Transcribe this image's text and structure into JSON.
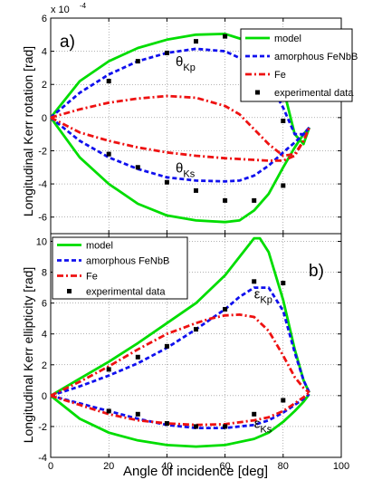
{
  "chart_data": [
    {
      "type": "line",
      "panel_label": "a)",
      "ylabel": "Longitudinal Kerr rotation [rad]",
      "xlabel": "",
      "exponent_label": "x 10",
      "exponent_power": "-4",
      "xlim": [
        0,
        100
      ],
      "ylim": [
        -7,
        6
      ],
      "xticks": [
        0,
        20,
        40,
        60,
        80,
        100
      ],
      "yticks": [
        -6,
        -4,
        -2,
        0,
        2,
        4,
        6
      ],
      "grid": true,
      "legend_position": "top-right",
      "legend": [
        "model",
        "amorphous FeNbB",
        "Fe",
        "experimental data"
      ],
      "annotations": [
        {
          "sym": "θ",
          "sub": "Kp",
          "x": 43,
          "y": 3.1
        },
        {
          "sym": "θ",
          "sub": "Ks",
          "x": 43,
          "y": -3.3
        }
      ],
      "series": [
        {
          "name": "model",
          "color": "#00dd00",
          "style": "solid",
          "x": [
            0,
            10,
            20,
            30,
            40,
            50,
            60,
            70,
            75,
            80,
            84,
            87,
            89
          ],
          "values": [
            0,
            2.2,
            3.4,
            4.2,
            4.7,
            5.0,
            5.05,
            4.5,
            3.6,
            1.8,
            -1.0,
            -1.6,
            -0.6
          ]
        },
        {
          "name": "model",
          "color": "#00dd00",
          "style": "solid",
          "x": [
            0,
            10,
            20,
            30,
            40,
            50,
            60,
            65,
            70,
            75,
            80,
            84,
            87,
            89
          ],
          "values": [
            0,
            -2.4,
            -4.0,
            -5.2,
            -5.9,
            -6.2,
            -6.3,
            -6.2,
            -5.6,
            -4.6,
            -3.0,
            -1.8,
            -1.0,
            -0.6
          ]
        },
        {
          "name": "amorphous FeNbB",
          "color": "#1010ee",
          "style": "dash",
          "x": [
            0,
            10,
            20,
            30,
            40,
            50,
            60,
            70,
            75,
            80,
            84,
            87,
            89
          ],
          "values": [
            0,
            1.5,
            2.6,
            3.4,
            3.9,
            4.15,
            4.0,
            3.2,
            2.2,
            0.6,
            -1.0,
            -1.0,
            -0.6
          ]
        },
        {
          "name": "amorphous FeNbB",
          "color": "#1010ee",
          "style": "dash",
          "x": [
            0,
            10,
            20,
            30,
            40,
            50,
            60,
            65,
            70,
            75,
            80,
            84,
            87,
            89
          ],
          "values": [
            0,
            -1.4,
            -2.4,
            -3.1,
            -3.6,
            -3.8,
            -3.85,
            -3.8,
            -3.5,
            -2.9,
            -2.1,
            -1.5,
            -1.0,
            -0.6
          ]
        },
        {
          "name": "Fe",
          "color": "#ee1111",
          "style": "dashdot",
          "x": [
            0,
            10,
            20,
            30,
            40,
            50,
            60,
            65,
            70,
            75,
            80,
            84,
            87,
            89
          ],
          "values": [
            0,
            0.5,
            0.9,
            1.15,
            1.3,
            1.2,
            0.7,
            0.2,
            -0.7,
            -1.6,
            -2.3,
            -2.2,
            -1.4,
            -0.6
          ]
        },
        {
          "name": "Fe",
          "color": "#ee1111",
          "style": "dashdot",
          "x": [
            0,
            10,
            20,
            30,
            40,
            50,
            60,
            70,
            75,
            80,
            84,
            87,
            89
          ],
          "values": [
            0,
            -0.9,
            -1.4,
            -1.8,
            -2.1,
            -2.3,
            -2.45,
            -2.55,
            -2.6,
            -2.6,
            -2.3,
            -1.4,
            -0.6
          ]
        }
      ],
      "points": {
        "name": "experimental data",
        "x": [
          20,
          30,
          40,
          50,
          60,
          20,
          30,
          40,
          50,
          60,
          70,
          80,
          80
        ],
        "values": [
          2.2,
          3.4,
          3.9,
          4.6,
          4.9,
          -2.2,
          -3.0,
          -3.9,
          -4.4,
          -5.0,
          -5.0,
          -4.1,
          -0.2
        ]
      }
    },
    {
      "type": "line",
      "panel_label": "b)",
      "ylabel": "Longitudinal Kerr ellipticity [rad]",
      "xlabel": "Angle of incidence [deg]",
      "xlim": [
        0,
        100
      ],
      "ylim": [
        -4,
        10.5
      ],
      "xticks": [
        0,
        20,
        40,
        60,
        80,
        100
      ],
      "yticks": [
        -4,
        -2,
        0,
        2,
        4,
        6,
        8,
        10
      ],
      "grid": true,
      "legend_position": "top-left",
      "legend": [
        "model",
        "amorphous FeNbB",
        "Fe",
        "experimental data"
      ],
      "annotations": [
        {
          "sym": "ε",
          "sub": "Kp",
          "x": 70,
          "y": 6.3
        },
        {
          "sym": "ε",
          "sub": "Ks",
          "x": 70,
          "y": -2.1
        }
      ],
      "series": [
        {
          "name": "model",
          "color": "#00dd00",
          "style": "solid",
          "x": [
            0,
            10,
            20,
            30,
            40,
            50,
            60,
            65,
            70,
            72,
            75,
            80,
            84,
            87,
            89
          ],
          "values": [
            0,
            1.1,
            2.2,
            3.4,
            4.7,
            6.0,
            7.8,
            9.0,
            10.2,
            10.2,
            9.3,
            6.2,
            3.0,
            1.0,
            0.2
          ]
        },
        {
          "name": "model",
          "color": "#00dd00",
          "style": "solid",
          "x": [
            0,
            10,
            20,
            30,
            40,
            50,
            60,
            70,
            75,
            80,
            84,
            87,
            89
          ],
          "values": [
            0,
            -1.5,
            -2.4,
            -2.9,
            -3.2,
            -3.3,
            -3.2,
            -2.8,
            -2.4,
            -1.7,
            -1.0,
            -0.4,
            0.1
          ]
        },
        {
          "name": "amorphous FeNbB",
          "color": "#1010ee",
          "style": "dash",
          "x": [
            0,
            10,
            20,
            30,
            40,
            50,
            60,
            65,
            70,
            75,
            80,
            84,
            87,
            89
          ],
          "values": [
            0,
            0.6,
            1.3,
            2.1,
            3.1,
            4.3,
            5.6,
            6.4,
            7.0,
            7.0,
            5.5,
            2.8,
            1.0,
            0.2
          ]
        },
        {
          "name": "amorphous FeNbB",
          "color": "#1010ee",
          "style": "dash",
          "x": [
            0,
            10,
            20,
            30,
            40,
            50,
            60,
            70,
            75,
            80,
            84,
            87,
            89
          ],
          "values": [
            0,
            -0.5,
            -1.0,
            -1.5,
            -1.9,
            -2.1,
            -2.1,
            -1.9,
            -1.6,
            -1.1,
            -0.6,
            -0.2,
            0.1
          ]
        },
        {
          "name": "Fe",
          "color": "#ee1111",
          "style": "dashdot",
          "x": [
            0,
            10,
            20,
            30,
            40,
            50,
            55,
            60,
            65,
            70,
            75,
            80,
            84,
            87,
            89
          ],
          "values": [
            0,
            0.9,
            1.9,
            3.0,
            4.0,
            4.7,
            5.0,
            5.2,
            5.25,
            5.1,
            4.2,
            2.6,
            1.2,
            0.5,
            0.2
          ]
        },
        {
          "name": "Fe",
          "color": "#ee1111",
          "style": "dashdot",
          "x": [
            0,
            10,
            20,
            30,
            40,
            50,
            60,
            70,
            75,
            80,
            84,
            87,
            89
          ],
          "values": [
            0,
            -0.6,
            -1.2,
            -1.6,
            -1.8,
            -1.9,
            -1.85,
            -1.6,
            -1.4,
            -1.0,
            -0.5,
            -0.1,
            0.2
          ]
        }
      ],
      "points": {
        "name": "experimental data",
        "x": [
          20,
          30,
          40,
          50,
          60,
          70,
          80,
          20,
          30,
          40,
          50,
          60,
          70,
          80
        ],
        "values": [
          1.7,
          2.5,
          3.2,
          4.3,
          5.6,
          7.4,
          7.3,
          -1.0,
          -1.2,
          -1.8,
          -2.0,
          -2.0,
          -1.2,
          -0.3
        ]
      }
    }
  ]
}
